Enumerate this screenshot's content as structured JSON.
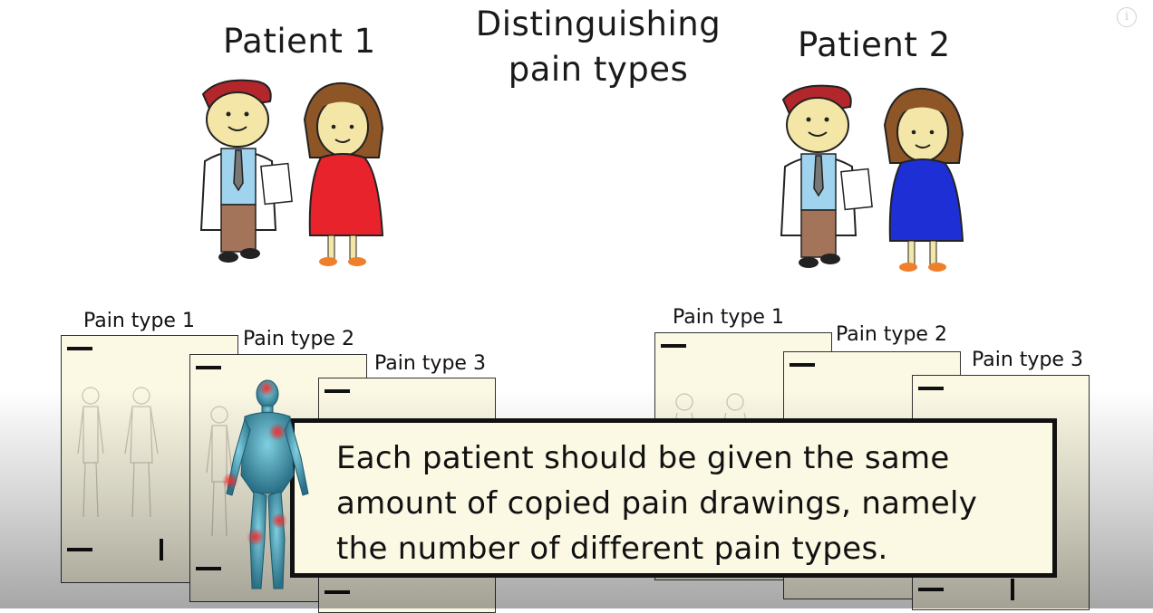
{
  "title": "Distinguishing pain types",
  "title_lines": [
    "Distinguishing",
    "pain types"
  ],
  "patients": [
    {
      "label": "Patient 1",
      "dress_color": "#e8232b"
    },
    {
      "label": "Patient 2",
      "dress_color": "#1f2fd6"
    }
  ],
  "left_sheets": [
    "Pain type 1",
    "Pain type 2",
    "Pain type 3"
  ],
  "right_sheets": [
    "Pain type 1",
    "Pain type 2",
    "Pain type 3"
  ],
  "caption_lines": [
    "Each patient should be given the same",
    "amount of copied pain drawings, namely",
    "the number of different pain types."
  ],
  "icons": {
    "info": "info-icon",
    "anatomy": "human-anatomy-figure"
  },
  "colors": {
    "paper": "#fbf8e4",
    "pain_spot": "#e02020"
  },
  "info_symbol": "i"
}
